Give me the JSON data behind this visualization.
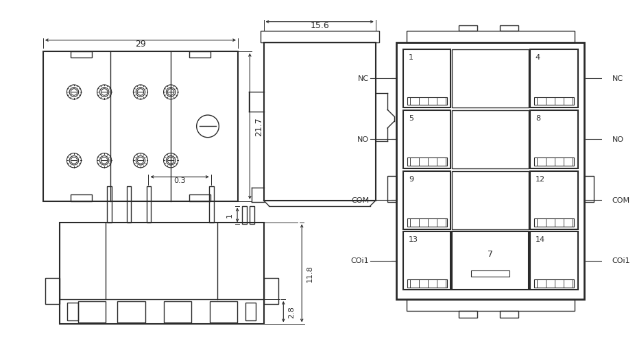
{
  "bg_color": "#ffffff",
  "line_color": "#2a2a2a",
  "dim_color": "#2a2a2a",
  "top_view": {
    "label_29": "29",
    "label_217": "21.7"
  },
  "side_view": {
    "label_156": "15.6",
    "label_1": "1"
  },
  "bottom_view": {
    "label_03": "0.3",
    "label_28": "2.8",
    "label_118": "11.8"
  },
  "pin_diagram": {
    "left_pins": [
      {
        "num": "1",
        "label": "NC"
      },
      {
        "num": "5",
        "label": "NO"
      },
      {
        "num": "9",
        "label": "COM"
      },
      {
        "num": "13",
        "label": "COi1"
      }
    ],
    "right_pins": [
      {
        "num": "4",
        "label": "NC"
      },
      {
        "num": "8",
        "label": "NO"
      },
      {
        "num": "12",
        "label": "COM"
      },
      {
        "num": "14",
        "label": "COi1"
      }
    ],
    "center_num": "7"
  }
}
